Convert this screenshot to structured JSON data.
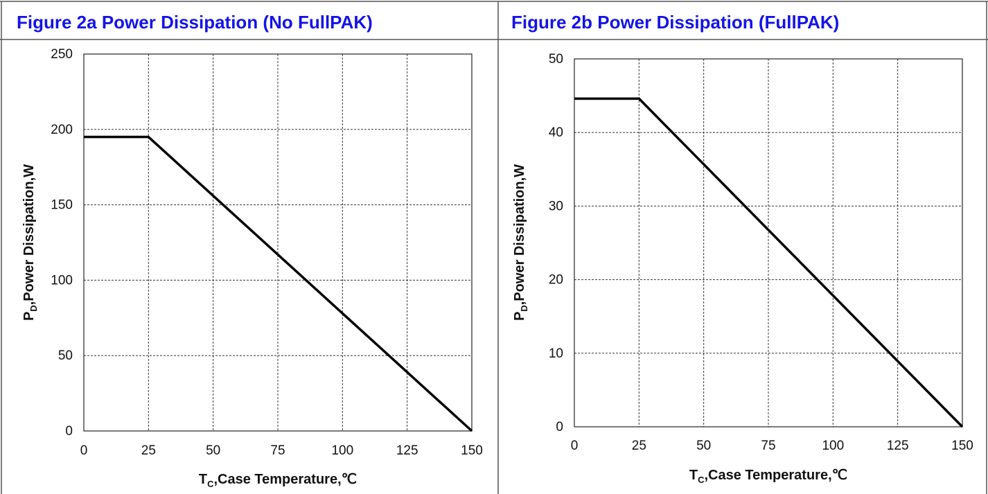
{
  "chart_data": [
    {
      "type": "line",
      "title": "Figure 2a Power Dissipation (No FullPAK)",
      "xlabel_main": "T",
      "xlabel_sub": "C",
      "xlabel_rest": ",Case Temperature,℃",
      "ylabel_main": "P",
      "ylabel_sub": "D",
      "ylabel_rest": ",Power Dissipation,W",
      "xlim": [
        0,
        150
      ],
      "ylim": [
        0,
        250
      ],
      "x_ticks": [
        "0",
        "25",
        "50",
        "75",
        "100",
        "125",
        "150"
      ],
      "y_ticks": [
        "0",
        "50",
        "100",
        "150",
        "200",
        "250"
      ],
      "grid": true,
      "series": [
        {
          "x": [
            0,
            25,
            150
          ],
          "y": [
            195,
            195,
            0
          ]
        }
      ]
    },
    {
      "type": "line",
      "title": "Figure 2b Power Dissipation (FullPAK)",
      "xlabel_main": "T",
      "xlabel_sub": "C",
      "xlabel_rest": ",Case Temperature,℃",
      "ylabel_main": "P",
      "ylabel_sub": "D",
      "ylabel_rest": ",Power Dissipation,W",
      "xlim": [
        0,
        150
      ],
      "ylim": [
        0,
        50
      ],
      "x_ticks": [
        "0",
        "25",
        "50",
        "75",
        "100",
        "125",
        "150"
      ],
      "y_ticks": [
        "0",
        "10",
        "20",
        "30",
        "40",
        "50"
      ],
      "grid": true,
      "series": [
        {
          "x": [
            0,
            25,
            150
          ],
          "y": [
            44.6,
            44.6,
            0
          ]
        }
      ]
    }
  ],
  "colors": {
    "title": "#1414e6",
    "line": "#000000",
    "grid": "#333333",
    "border": "#555555"
  }
}
